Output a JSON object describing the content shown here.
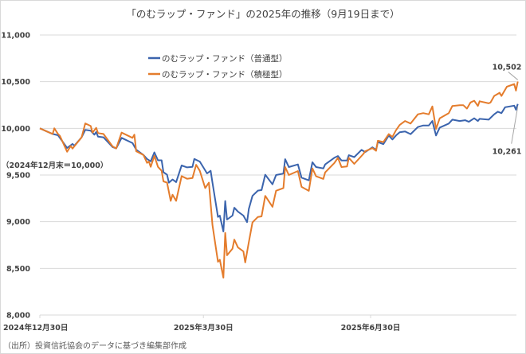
{
  "chart_data": {
    "type": "line",
    "title": "「のむラップ・ファンド」の2025年の推移（9月19日まで）",
    "annotation": "（2024年12月末＝10,000）",
    "source": "（出所）投資信託協会のデータに基づき編集部作成",
    "x_unit": "days since 2024-12-30",
    "xlim": [
      0,
      264
    ],
    "ylim": [
      8000,
      11000
    ],
    "y_ticks": [
      8000,
      8500,
      9000,
      9500,
      10000,
      10500,
      11000
    ],
    "y_tick_labels": [
      "8,000",
      "8,500",
      "9,000",
      "9,500",
      "10,000",
      "10,500",
      "11,000"
    ],
    "x_ticks": [
      {
        "day": 0,
        "label": "2024年12月30日"
      },
      {
        "day": 90,
        "label": "2025年3月30日"
      },
      {
        "day": 182,
        "label": "2025年6月30日"
      }
    ],
    "grid": true,
    "legend_position": "top-left",
    "series": [
      {
        "name": "のむラップ・ファンド（普通型）",
        "color": "#3b64ad",
        "end_label": "10,261",
        "points": [
          [
            0,
            10000
          ],
          [
            7,
            9940
          ],
          [
            10,
            9926
          ],
          [
            15,
            9790
          ],
          [
            18,
            9833
          ],
          [
            19,
            9814
          ],
          [
            23,
            9904
          ],
          [
            25,
            9983
          ],
          [
            28,
            9975
          ],
          [
            30,
            9932
          ],
          [
            31,
            9960
          ],
          [
            32,
            9912
          ],
          [
            35,
            9904
          ],
          [
            40,
            9800
          ],
          [
            42,
            9785
          ],
          [
            45,
            9898
          ],
          [
            51,
            9842
          ],
          [
            53,
            9771
          ],
          [
            57,
            9715
          ],
          [
            59,
            9672
          ],
          [
            61,
            9647
          ],
          [
            63,
            9743
          ],
          [
            65,
            9658
          ],
          [
            67,
            9658
          ],
          [
            68,
            9530
          ],
          [
            70,
            9503
          ],
          [
            71,
            9418
          ],
          [
            73,
            9452
          ],
          [
            75,
            9424
          ],
          [
            78,
            9602
          ],
          [
            81,
            9582
          ],
          [
            84,
            9588
          ],
          [
            85,
            9672
          ],
          [
            88,
            9644
          ],
          [
            92,
            9517
          ],
          [
            94,
            9545
          ],
          [
            95,
            9418
          ],
          [
            98,
            9051
          ],
          [
            99,
            9065
          ],
          [
            101,
            8895
          ],
          [
            102,
            9221
          ],
          [
            103,
            9023
          ],
          [
            106,
            9065
          ],
          [
            107,
            9150
          ],
          [
            109,
            9107
          ],
          [
            112,
            9065
          ],
          [
            114,
            8995
          ],
          [
            115,
            9136
          ],
          [
            117,
            9277
          ],
          [
            120,
            9333
          ],
          [
            122,
            9339
          ],
          [
            124,
            9503
          ],
          [
            128,
            9400
          ],
          [
            130,
            9500
          ],
          [
            134,
            9515
          ],
          [
            135,
            9670
          ],
          [
            137,
            9585
          ],
          [
            142,
            9613
          ],
          [
            144,
            9472
          ],
          [
            148,
            9443
          ],
          [
            150,
            9636
          ],
          [
            152,
            9585
          ],
          [
            156,
            9571
          ],
          [
            157,
            9613
          ],
          [
            162,
            9684
          ],
          [
            164,
            9704
          ],
          [
            166,
            9655
          ],
          [
            169,
            9655
          ],
          [
            170,
            9712
          ],
          [
            173,
            9692
          ],
          [
            177,
            9769
          ],
          [
            179,
            9746
          ],
          [
            183,
            9797
          ],
          [
            185,
            9769
          ],
          [
            186,
            9853
          ],
          [
            189,
            9831
          ],
          [
            192,
            9924
          ],
          [
            194,
            9881
          ],
          [
            196,
            9924
          ],
          [
            198,
            9958
          ],
          [
            201,
            9966
          ],
          [
            204,
            9938
          ],
          [
            208,
            10014
          ],
          [
            211,
            10031
          ],
          [
            214,
            10031
          ],
          [
            216,
            10079
          ],
          [
            218,
            9924
          ],
          [
            220,
            10008
          ],
          [
            225,
            10051
          ],
          [
            227,
            10093
          ],
          [
            231,
            10079
          ],
          [
            234,
            10087
          ],
          [
            236,
            10070
          ],
          [
            239,
            10108
          ],
          [
            241,
            10079
          ],
          [
            242,
            10102
          ],
          [
            247,
            10093
          ],
          [
            250,
            10150
          ],
          [
            252,
            10178
          ],
          [
            254,
            10163
          ],
          [
            256,
            10226
          ],
          [
            261,
            10243
          ],
          [
            262,
            10200
          ],
          [
            263,
            10261
          ]
        ]
      },
      {
        "name": "のむラップ・ファンド（積極型）",
        "color": "#e47c2c",
        "end_label": "10,502",
        "points": [
          [
            0,
            10000
          ],
          [
            7,
            9940
          ],
          [
            8,
            10000
          ],
          [
            10,
            9940
          ],
          [
            11,
            9920
          ],
          [
            15,
            9750
          ],
          [
            17,
            9811
          ],
          [
            18,
            9783
          ],
          [
            23,
            9904
          ],
          [
            25,
            10053
          ],
          [
            28,
            10025
          ],
          [
            29,
            9954
          ],
          [
            31,
            10005
          ],
          [
            32,
            9949
          ],
          [
            35,
            9940
          ],
          [
            40,
            9807
          ],
          [
            42,
            9785
          ],
          [
            45,
            9954
          ],
          [
            51,
            9898
          ],
          [
            52,
            9932
          ],
          [
            53,
            9755
          ],
          [
            57,
            9715
          ],
          [
            59,
            9630
          ],
          [
            60,
            9644
          ],
          [
            61,
            9588
          ],
          [
            63,
            9706
          ],
          [
            65,
            9588
          ],
          [
            67,
            9545
          ],
          [
            68,
            9432
          ],
          [
            70,
            9418
          ],
          [
            72,
            9223
          ],
          [
            73,
            9289
          ],
          [
            75,
            9223
          ],
          [
            78,
            9488
          ],
          [
            81,
            9460
          ],
          [
            84,
            9468
          ],
          [
            86,
            9609
          ],
          [
            88,
            9545
          ],
          [
            91,
            9360
          ],
          [
            93,
            9418
          ],
          [
            95,
            8964
          ],
          [
            98,
            8570
          ],
          [
            99,
            8592
          ],
          [
            101,
            8400
          ],
          [
            102,
            8880
          ],
          [
            103,
            8640
          ],
          [
            106,
            8711
          ],
          [
            107,
            8808
          ],
          [
            109,
            8724
          ],
          [
            112,
            8682
          ],
          [
            113,
            8563
          ],
          [
            115,
            8780
          ],
          [
            117,
            8992
          ],
          [
            120,
            9051
          ],
          [
            122,
            9057
          ],
          [
            124,
            9277
          ],
          [
            128,
            9159
          ],
          [
            130,
            9331
          ],
          [
            134,
            9360
          ],
          [
            135,
            9585
          ],
          [
            137,
            9500
          ],
          [
            142,
            9543
          ],
          [
            144,
            9373
          ],
          [
            148,
            9330
          ],
          [
            150,
            9571
          ],
          [
            152,
            9486
          ],
          [
            156,
            9458
          ],
          [
            157,
            9528
          ],
          [
            162,
            9627
          ],
          [
            164,
            9684
          ],
          [
            166,
            9585
          ],
          [
            169,
            9591
          ],
          [
            170,
            9684
          ],
          [
            173,
            9619
          ],
          [
            178,
            9726
          ],
          [
            179,
            9754
          ],
          [
            183,
            9788
          ],
          [
            185,
            9760
          ],
          [
            186,
            9867
          ],
          [
            189,
            9853
          ],
          [
            192,
            9938
          ],
          [
            194,
            9909
          ],
          [
            196,
            9980
          ],
          [
            198,
            10036
          ],
          [
            201,
            10079
          ],
          [
            204,
            10051
          ],
          [
            208,
            10150
          ],
          [
            211,
            10163
          ],
          [
            214,
            10150
          ],
          [
            216,
            10235
          ],
          [
            218,
            9994
          ],
          [
            220,
            10107
          ],
          [
            225,
            10163
          ],
          [
            227,
            10240
          ],
          [
            231,
            10248
          ],
          [
            233,
            10248
          ],
          [
            235,
            10212
          ],
          [
            237,
            10277
          ],
          [
            239,
            10296
          ],
          [
            241,
            10240
          ],
          [
            242,
            10290
          ],
          [
            247,
            10268
          ],
          [
            248,
            10277
          ],
          [
            250,
            10347
          ],
          [
            253,
            10381
          ],
          [
            254,
            10347
          ],
          [
            257,
            10446
          ],
          [
            261,
            10474
          ],
          [
            262,
            10404
          ],
          [
            263,
            10502
          ]
        ]
      }
    ]
  }
}
